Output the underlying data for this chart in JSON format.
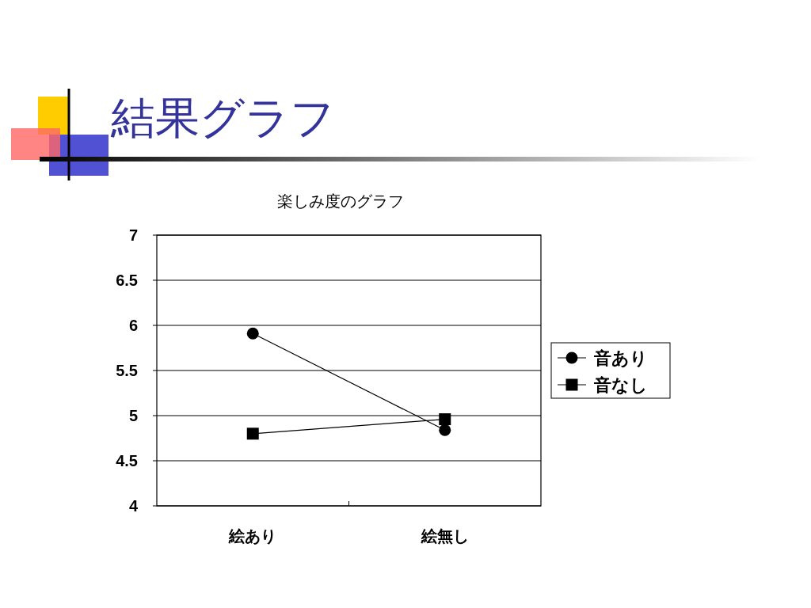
{
  "chart_data": {
    "type": "line",
    "title": "結果グラフ",
    "subtitle": "楽しみ度のグラフ",
    "categories": [
      "絵あり",
      "絵無し"
    ],
    "series": [
      {
        "name": "音あり",
        "color": "#000000",
        "marker": "circle",
        "values": [
          5.91,
          4.84
        ]
      },
      {
        "name": "音なし",
        "color": "#000000",
        "marker": "square",
        "values": [
          4.8,
          4.96
        ]
      }
    ],
    "ylim": [
      4,
      7
    ],
    "yticks": [
      4,
      4.5,
      5,
      5.5,
      6,
      6.5,
      7
    ],
    "grid": "y",
    "legend": "right"
  }
}
